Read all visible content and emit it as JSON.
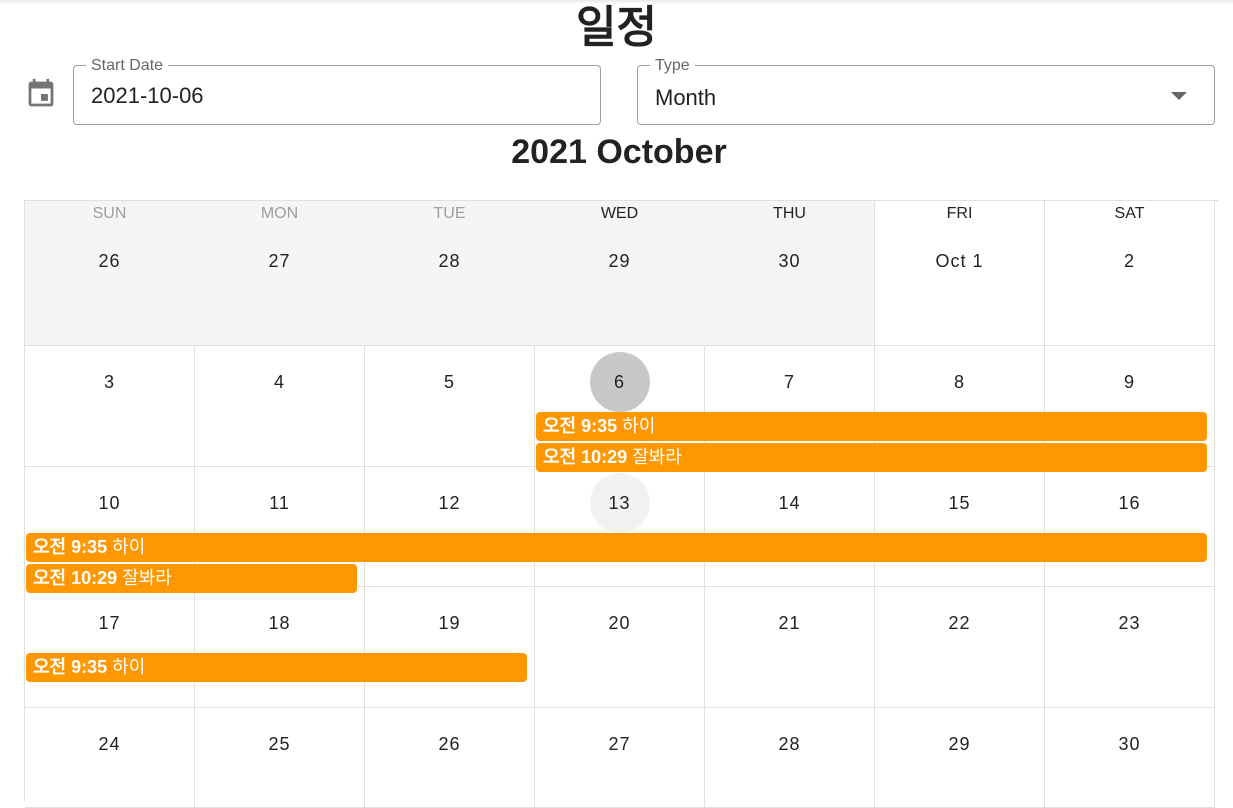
{
  "title": "일정",
  "start_date": {
    "label": "Start Date",
    "value": "2021-10-06"
  },
  "type_select": {
    "label": "Type",
    "value": "Month"
  },
  "month_title": "2021 October",
  "weekdays": [
    "SUN",
    "MON",
    "TUE",
    "WED",
    "THU",
    "FRI",
    "SAT"
  ],
  "weeks": [
    [
      "26",
      "27",
      "28",
      "29",
      "30",
      "Oct 1",
      "2"
    ],
    [
      "3",
      "4",
      "5",
      "6",
      "7",
      "8",
      "9"
    ],
    [
      "10",
      "11",
      "12",
      "13",
      "14",
      "15",
      "16"
    ],
    [
      "17",
      "18",
      "19",
      "20",
      "21",
      "22",
      "23"
    ],
    [
      "24",
      "25",
      "26",
      "27",
      "28",
      "29",
      "30"
    ]
  ],
  "today": "6",
  "events": [
    {
      "time": "오전 9:35",
      "name": "하이"
    },
    {
      "time": "오전 10:29",
      "name": "잘봐라"
    },
    {
      "time": "오전 9:35",
      "name": "하이"
    },
    {
      "time": "오전 10:29",
      "name": "잘봐라"
    },
    {
      "time": "오전 9:35",
      "name": "하이"
    }
  ],
  "colors": {
    "event": "#ff9800",
    "today": "#c8c8c8",
    "past_bg": "#f5f5f5"
  },
  "icons": {
    "date_field": "calendar-icon",
    "select": "dropdown-arrow-icon"
  }
}
